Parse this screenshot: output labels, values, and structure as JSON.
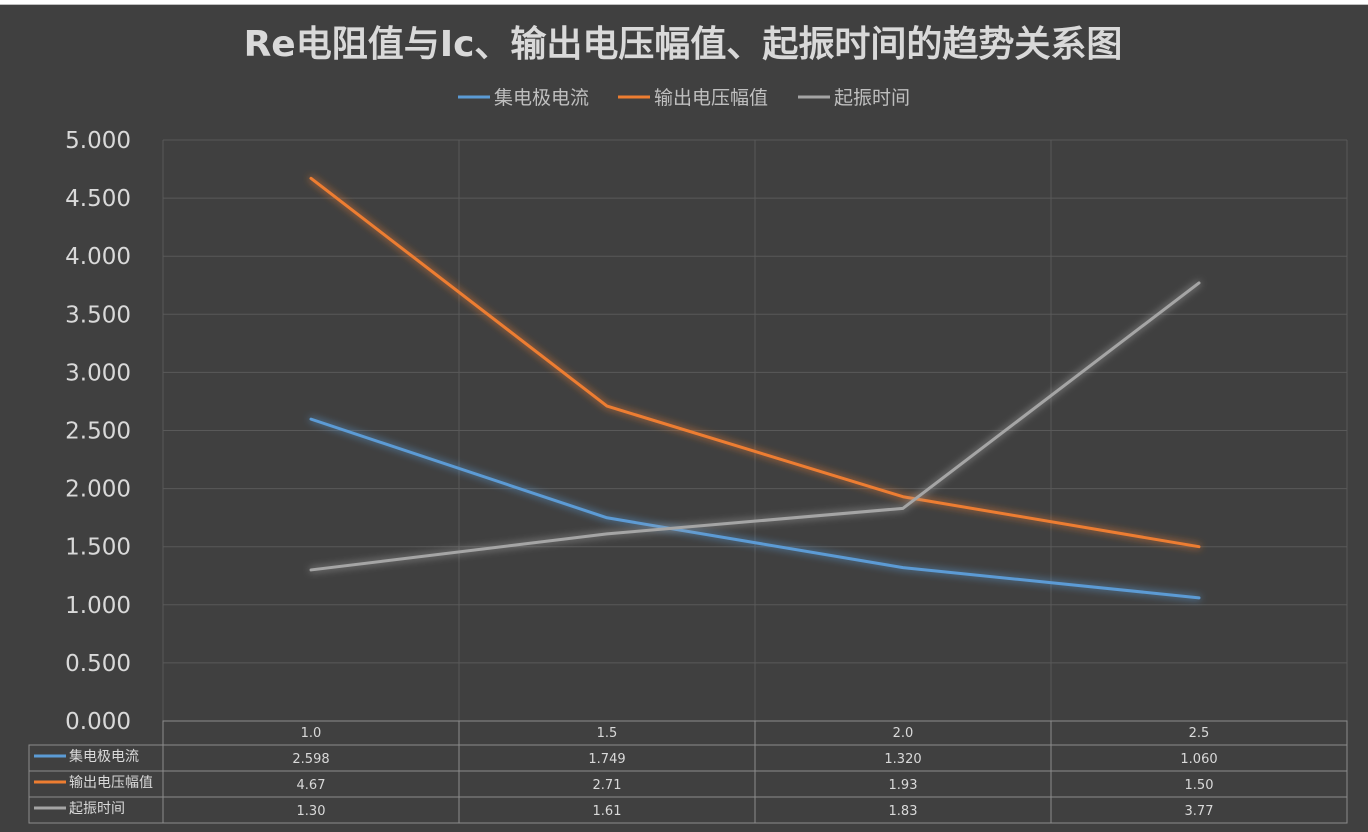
{
  "chart_data": {
    "type": "line",
    "title": "Re电阻值与Ic、输出电压幅值、起振时间的趋势关系图",
    "categories": [
      "1.0",
      "1.5",
      "2.0",
      "2.5"
    ],
    "ylim": [
      0,
      5
    ],
    "yticks": [
      "0.000",
      "0.500",
      "1.000",
      "1.500",
      "2.000",
      "2.500",
      "3.000",
      "3.500",
      "4.000",
      "4.500",
      "5.000"
    ],
    "grid": true,
    "legend_position": "top",
    "data_table": true,
    "series": [
      {
        "name": "集电极电流",
        "color": "#5b9bd5",
        "values": [
          2.598,
          1.749,
          1.32,
          1.06
        ],
        "labels": [
          "2.598",
          "1.749",
          "1.320",
          "1.060"
        ]
      },
      {
        "name": "输出电压幅值",
        "color": "#ed7d31",
        "values": [
          4.67,
          2.71,
          1.93,
          1.5
        ],
        "labels": [
          "4.67",
          "2.71",
          "1.93",
          "1.50"
        ]
      },
      {
        "name": "起振时间",
        "color": "#a5a5a5",
        "values": [
          1.3,
          1.61,
          1.83,
          3.77
        ],
        "labels": [
          "1.30",
          "1.61",
          "1.83",
          "3.77"
        ]
      }
    ]
  }
}
